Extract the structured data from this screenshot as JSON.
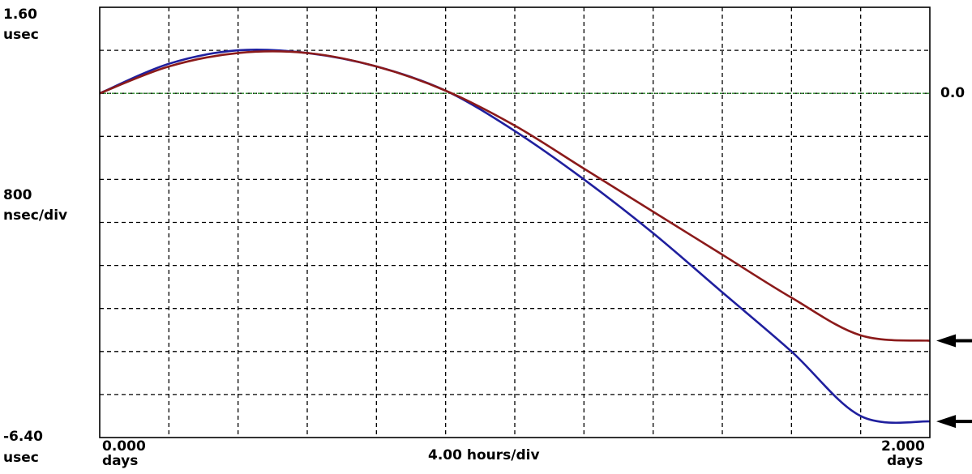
{
  "chart_data": {
    "type": "line",
    "y_axis": {
      "top_value_label": "1.60",
      "top_unit_label": "usec",
      "scale_value_label": "800",
      "scale_unit_label": "nsec/div",
      "bottom_value_label": "-6.40",
      "bottom_unit_label": "usec",
      "right_reference_label": "0.0",
      "range_usec": [
        -6.4,
        1.6
      ],
      "divisions": 10,
      "zero_line_usec": 0.0
    },
    "x_axis": {
      "start_value_label": "0.000",
      "start_unit_label": "days",
      "scale_label": "4.00 hours/div",
      "end_value_label": "2.000",
      "end_unit_label": "days",
      "range_days": [
        0,
        2
      ],
      "divisions": 12
    },
    "grid": true,
    "series": [
      {
        "color": "#1f1f9e",
        "x_days": [
          0,
          0.1667,
          0.3333,
          0.5,
          0.6667,
          0.8333,
          1.0,
          1.1667,
          1.3333,
          1.5,
          1.6667,
          1.8333,
          2.0
        ],
        "y_usec": [
          0,
          0.55,
          0.8,
          0.75,
          0.5,
          0.05,
          -0.7,
          -1.6,
          -2.6,
          -3.7,
          -4.8,
          -6.0,
          -6.1
        ]
      },
      {
        "color": "#8b1a1a",
        "x_days": [
          0,
          0.1667,
          0.3333,
          0.5,
          0.6667,
          0.8333,
          1.0,
          1.1667,
          1.3333,
          1.5,
          1.6667,
          1.8333,
          2.0
        ],
        "y_usec": [
          0,
          0.5,
          0.75,
          0.75,
          0.5,
          0.05,
          -0.6,
          -1.4,
          -2.2,
          -3.0,
          -3.8,
          -4.5,
          -4.6
        ]
      }
    ],
    "arrows": {
      "color": "#000000",
      "count": 2
    },
    "colors": {
      "grid": "#000000",
      "zero_line": "#2e8b2e",
      "frame": "#000000"
    }
  }
}
